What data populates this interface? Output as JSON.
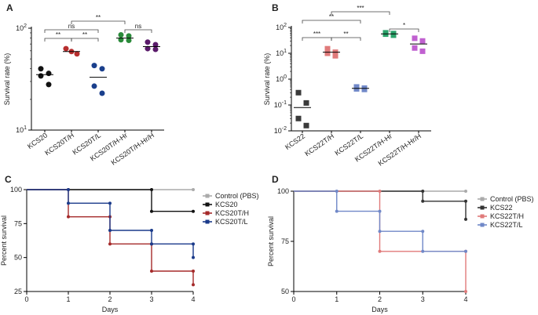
{
  "chart_data": [
    {
      "panel": "A",
      "type": "scatter",
      "ylabel": "Survival rate (%)",
      "yscale": "log",
      "ylim": [
        10,
        100
      ],
      "yticks": [
        {
          "v": 10,
          "label": "10",
          "sup": "1"
        },
        {
          "v": 100,
          "label": "10",
          "sup": "2"
        }
      ],
      "categories": [
        "KCS20",
        "KCS20T/H",
        "KCS20T/L",
        "KCS20T/H-Hr",
        "KCS20T/H-Hr/H"
      ],
      "series": [
        {
          "name": "KCS20",
          "color": "#111111",
          "shape": "circle",
          "points": [
            40,
            36,
            34,
            28
          ],
          "mean": 35
        },
        {
          "name": "KCS20T/H",
          "color": "#b72e2e",
          "shape": "circle",
          "points": [
            63,
            59,
            56
          ],
          "mean": 59
        },
        {
          "name": "KCS20T/L",
          "color": "#1a3f8c",
          "shape": "circle",
          "points": [
            43,
            40,
            27,
            23
          ],
          "mean": 33
        },
        {
          "name": "KCS20T/H-Hr",
          "color": "#2a8a3a",
          "shape": "circle",
          "points": [
            86,
            84,
            77,
            76
          ],
          "mean": 80
        },
        {
          "name": "KCS20T/H-Hr/H",
          "color": "#5a1a6a",
          "shape": "circle",
          "points": [
            73,
            69,
            63,
            62
          ],
          "mean": 66
        }
      ],
      "brackets": [
        {
          "from": 0,
          "to": 1,
          "label": "**",
          "level": 0
        },
        {
          "from": 1,
          "to": 2,
          "label": "**",
          "level": 0
        },
        {
          "from": 0,
          "to": 2,
          "label": "ns",
          "level": 1
        },
        {
          "from": 3,
          "to": 4,
          "label": "ns",
          "level": 1
        },
        {
          "from": 1,
          "to": 3,
          "label": "**",
          "level": 2
        }
      ]
    },
    {
      "panel": "B",
      "type": "scatter",
      "ylabel": "Survival rate (%)",
      "yscale": "log",
      "ylim": [
        0.01,
        100
      ],
      "yticks": [
        {
          "v": 0.01,
          "label": "10",
          "sup": "-2"
        },
        {
          "v": 0.1,
          "label": "10",
          "sup": "-1"
        },
        {
          "v": 1,
          "label": "10",
          "sup": "0"
        },
        {
          "v": 10,
          "label": "10",
          "sup": "1"
        },
        {
          "v": 100,
          "label": "10",
          "sup": "2"
        }
      ],
      "categories": [
        "KCS22",
        "KCS22T/H",
        "KCS22T/L",
        "KCS22T/H-Hr",
        "KCS22T/H-Hr/H"
      ],
      "series": [
        {
          "name": "KCS22",
          "color": "#3a3a3a",
          "shape": "square",
          "points": [
            0.3,
            0.12,
            0.03,
            0.016
          ],
          "mean": 0.08
        },
        {
          "name": "KCS22T/H",
          "color": "#e07a7a",
          "shape": "square",
          "points": [
            15,
            11,
            10,
            8
          ],
          "mean": 11
        },
        {
          "name": "KCS22T/L",
          "color": "#7088c8",
          "shape": "square",
          "points": [
            0.5,
            0.45,
            0.42,
            0.4
          ],
          "mean": 0.44
        },
        {
          "name": "KCS22T/H-Hr",
          "color": "#2aa36a",
          "shape": "square",
          "points": [
            62,
            58,
            55,
            50
          ],
          "mean": 56
        },
        {
          "name": "KCS22T/H-Hr/H",
          "color": "#c060d0",
          "shape": "square",
          "points": [
            38,
            30,
            16,
            12
          ],
          "mean": 23
        }
      ],
      "brackets": [
        {
          "from": 0,
          "to": 1,
          "label": "***",
          "level": 0
        },
        {
          "from": 1,
          "to": 2,
          "label": "**",
          "level": 0
        },
        {
          "from": 3,
          "to": 4,
          "label": "*",
          "level": 1
        },
        {
          "from": 0,
          "to": 2,
          "label": "**",
          "level": 2
        },
        {
          "from": 1,
          "to": 3,
          "label": "***",
          "level": 3
        }
      ]
    },
    {
      "panel": "C",
      "type": "line",
      "xlabel": "Days",
      "ylabel": "Percent survival",
      "xlim": [
        0,
        4
      ],
      "ylim": [
        25,
        100
      ],
      "xticks": [
        0,
        1,
        2,
        3,
        4
      ],
      "yticks": [
        25,
        50,
        75,
        100
      ],
      "series": [
        {
          "name": "Control (PBS)",
          "color": "#aaaaaa",
          "steps": [
            [
              0,
              100
            ],
            [
              4,
              100
            ]
          ]
        },
        {
          "name": "KCS20",
          "color": "#111111",
          "steps": [
            [
              0,
              100
            ],
            [
              3,
              100
            ],
            [
              3,
              84
            ],
            [
              4,
              84
            ]
          ]
        },
        {
          "name": "KCS20T/H",
          "color": "#a52a2a",
          "steps": [
            [
              0,
              100
            ],
            [
              1,
              100
            ],
            [
              1,
              80
            ],
            [
              2,
              80
            ],
            [
              2,
              60
            ],
            [
              3,
              60
            ],
            [
              3,
              40
            ],
            [
              4,
              40
            ],
            [
              4,
              30
            ]
          ]
        },
        {
          "name": "KCS20T/L",
          "color": "#1a3a8a",
          "steps": [
            [
              0,
              100
            ],
            [
              1,
              100
            ],
            [
              1,
              90
            ],
            [
              2,
              90
            ],
            [
              2,
              70
            ],
            [
              3,
              70
            ],
            [
              3,
              60
            ],
            [
              4,
              60
            ],
            [
              4,
              50
            ]
          ]
        }
      ]
    },
    {
      "panel": "D",
      "type": "line",
      "xlabel": "Days",
      "ylabel": "Percent survival",
      "xlim": [
        0,
        4
      ],
      "ylim": [
        50,
        100
      ],
      "xticks": [
        0,
        1,
        2,
        3,
        4
      ],
      "yticks": [
        50,
        75,
        100
      ],
      "series": [
        {
          "name": "Control (PBS)",
          "color": "#aaaaaa",
          "steps": [
            [
              0,
              100
            ],
            [
              4,
              100
            ]
          ]
        },
        {
          "name": "KCS22",
          "color": "#333333",
          "steps": [
            [
              0,
              100
            ],
            [
              3,
              100
            ],
            [
              3,
              95
            ],
            [
              4,
              95
            ],
            [
              4,
              86
            ]
          ]
        },
        {
          "name": "KCS22T/H",
          "color": "#e07a7a",
          "steps": [
            [
              0,
              100
            ],
            [
              2,
              100
            ],
            [
              2,
              70
            ],
            [
              4,
              70
            ],
            [
              4,
              50
            ]
          ]
        },
        {
          "name": "KCS22T/L",
          "color": "#7088c8",
          "steps": [
            [
              0,
              100
            ],
            [
              1,
              100
            ],
            [
              1,
              90
            ],
            [
              2,
              90
            ],
            [
              2,
              80
            ],
            [
              3,
              80
            ],
            [
              3,
              70
            ],
            [
              4,
              70
            ]
          ]
        }
      ]
    }
  ]
}
